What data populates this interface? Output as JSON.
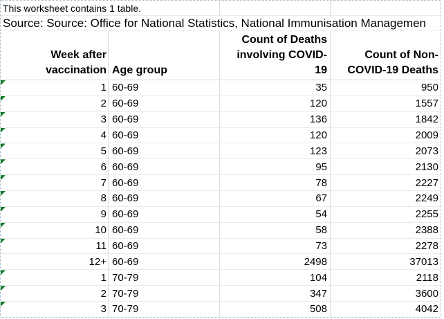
{
  "banner": {
    "note": "This worksheet contains 1 table.",
    "source": "Source: Source: Office for National Statistics, National Immunisation Managemen"
  },
  "table": {
    "headers": {
      "week": "Week after\nvaccination",
      "age": "Age group",
      "covid_deaths": "Count of Deaths\ninvolving COVID-\n19",
      "non_covid_deaths": "Count of Non-\nCOVID-19 Deaths"
    },
    "rows": [
      {
        "week": "1",
        "age": "60-69",
        "covid": "35",
        "non_covid": "950",
        "flag": true
      },
      {
        "week": "2",
        "age": "60-69",
        "covid": "120",
        "non_covid": "1557",
        "flag": true
      },
      {
        "week": "3",
        "age": "60-69",
        "covid": "136",
        "non_covid": "1842",
        "flag": true
      },
      {
        "week": "4",
        "age": "60-69",
        "covid": "120",
        "non_covid": "2009",
        "flag": true
      },
      {
        "week": "5",
        "age": "60-69",
        "covid": "123",
        "non_covid": "2073",
        "flag": true
      },
      {
        "week": "6",
        "age": "60-69",
        "covid": "95",
        "non_covid": "2130",
        "flag": true
      },
      {
        "week": "7",
        "age": "60-69",
        "covid": "78",
        "non_covid": "2227",
        "flag": true
      },
      {
        "week": "8",
        "age": "60-69",
        "covid": "67",
        "non_covid": "2249",
        "flag": true
      },
      {
        "week": "9",
        "age": "60-69",
        "covid": "54",
        "non_covid": "2255",
        "flag": true
      },
      {
        "week": "10",
        "age": "60-69",
        "covid": "58",
        "non_covid": "2388",
        "flag": true
      },
      {
        "week": "11",
        "age": "60-69",
        "covid": "73",
        "non_covid": "2278",
        "flag": true
      },
      {
        "week": "12+",
        "age": "60-69",
        "covid": "2498",
        "non_covid": "37013",
        "flag": false
      },
      {
        "week": "1",
        "age": "70-79",
        "covid": "104",
        "non_covid": "2118",
        "flag": true
      },
      {
        "week": "2",
        "age": "70-79",
        "covid": "347",
        "non_covid": "3600",
        "flag": true
      },
      {
        "week": "3",
        "age": "70-79",
        "covid": "508",
        "non_covid": "4042",
        "flag": true
      }
    ]
  },
  "colors": {
    "error_flag_green": "#107c28"
  }
}
